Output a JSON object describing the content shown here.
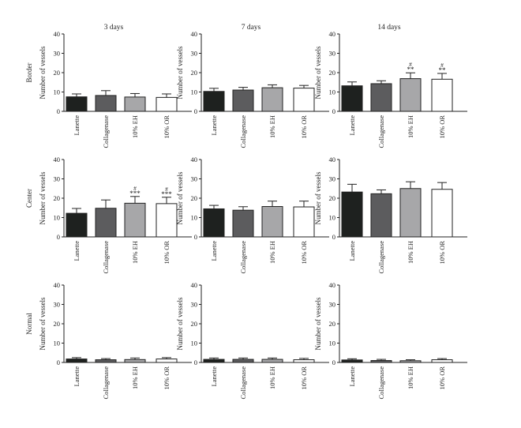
{
  "chart_data": {
    "type": "bar",
    "columns": [
      "3 days",
      "7 days",
      "14 days"
    ],
    "rows": [
      "Border",
      "Center",
      "Normal"
    ],
    "ylabel": "Number of vessels",
    "yticks": [
      "0",
      "10",
      "20",
      "30",
      "40"
    ],
    "ylim": [
      0,
      40
    ],
    "categories": [
      "Lanette",
      "Collagenase",
      "10% EH",
      "10% OR"
    ],
    "colors": [
      "#1e211f",
      "#5c5c5e",
      "#a7a7a9",
      "#ffffff"
    ],
    "panels": [
      {
        "row": "Border",
        "column": "3 days",
        "values": [
          7.5,
          8.2,
          7.4,
          7.2
        ],
        "errors": [
          1.5,
          2.5,
          1.8,
          1.8
        ],
        "marks": [
          [
            "",
            ""
          ],
          [
            "",
            ""
          ],
          [
            "",
            ""
          ],
          [
            "",
            ""
          ]
        ]
      },
      {
        "row": "Border",
        "column": "7 days",
        "values": [
          10.3,
          11.0,
          12.2,
          12.0
        ],
        "errors": [
          1.6,
          1.4,
          1.5,
          1.4
        ],
        "marks": [
          [
            "",
            ""
          ],
          [
            "",
            ""
          ],
          [
            "",
            ""
          ],
          [
            "",
            ""
          ]
        ]
      },
      {
        "row": "Border",
        "column": "14 days",
        "values": [
          13.2,
          14.3,
          16.9,
          16.6
        ],
        "errors": [
          2.0,
          1.5,
          3.0,
          3.0
        ],
        "marks": [
          [
            "",
            ""
          ],
          [
            "",
            ""
          ],
          [
            "**",
            "#"
          ],
          [
            "**",
            "#"
          ]
        ]
      },
      {
        "row": "Center",
        "column": "3 days",
        "values": [
          12.2,
          14.8,
          17.4,
          17.2
        ],
        "errors": [
          2.5,
          4.3,
          3.5,
          3.3
        ],
        "marks": [
          [
            "",
            ""
          ],
          [
            "",
            ""
          ],
          [
            "***",
            "#"
          ],
          [
            "***",
            "#"
          ]
        ]
      },
      {
        "row": "Center",
        "column": "7 days",
        "values": [
          14.5,
          13.8,
          15.7,
          15.5
        ],
        "errors": [
          1.8,
          1.8,
          2.8,
          3.0
        ],
        "marks": [
          [
            "",
            ""
          ],
          [
            "",
            ""
          ],
          [
            "",
            ""
          ],
          [
            "",
            ""
          ]
        ]
      },
      {
        "row": "Center",
        "column": "14 days",
        "values": [
          23.2,
          22.3,
          25.0,
          24.6
        ],
        "errors": [
          4.0,
          2.0,
          3.5,
          3.5
        ],
        "marks": [
          [
            "",
            ""
          ],
          [
            "",
            ""
          ],
          [
            "",
            ""
          ],
          [
            "",
            ""
          ]
        ]
      },
      {
        "row": "Normal",
        "column": "3 days",
        "values": [
          1.8,
          1.4,
          1.5,
          1.8
        ],
        "errors": [
          0.7,
          0.6,
          0.8,
          0.7
        ],
        "marks": [
          [
            "",
            ""
          ],
          [
            "",
            ""
          ],
          [
            "",
            ""
          ],
          [
            "",
            ""
          ]
        ]
      },
      {
        "row": "Normal",
        "column": "7 days",
        "values": [
          1.6,
          1.6,
          1.6,
          1.4
        ],
        "errors": [
          0.7,
          0.7,
          0.7,
          0.7
        ],
        "marks": [
          [
            "",
            ""
          ],
          [
            "",
            ""
          ],
          [
            "",
            ""
          ],
          [
            "",
            ""
          ]
        ]
      },
      {
        "row": "Normal",
        "column": "14 days",
        "values": [
          1.3,
          1.0,
          0.9,
          1.4
        ],
        "errors": [
          0.6,
          0.6,
          0.5,
          0.6
        ],
        "marks": [
          [
            "",
            ""
          ],
          [
            "",
            ""
          ],
          [
            "",
            ""
          ],
          [
            "",
            ""
          ]
        ]
      }
    ]
  }
}
